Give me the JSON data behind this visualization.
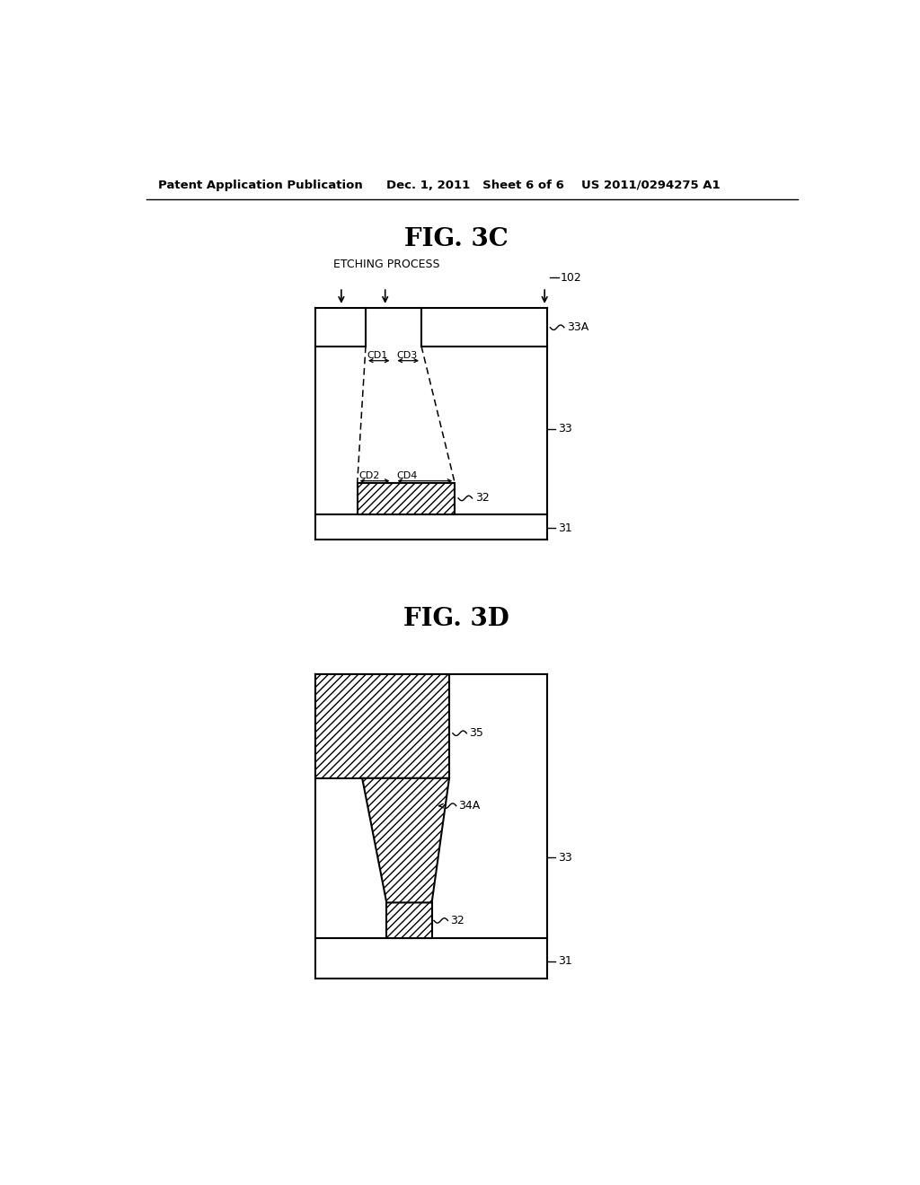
{
  "bg_color": "#ffffff",
  "header_left": "Patent Application Publication",
  "header_mid": "Dec. 1, 2011   Sheet 6 of 6",
  "header_right": "US 2011/0294275 A1",
  "fig3c_title": "FIG. 3C",
  "fig3d_title": "FIG. 3D",
  "line_color": "#000000",
  "hatch_pattern": "////"
}
